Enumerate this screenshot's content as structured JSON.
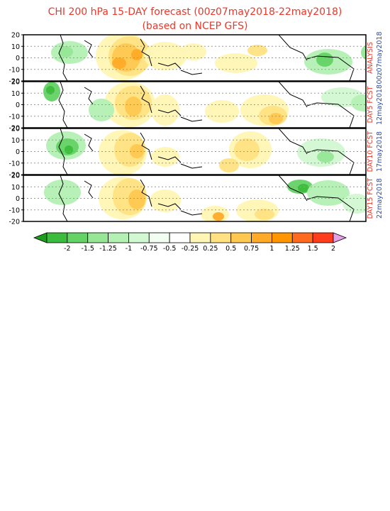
{
  "title": "CHI 200 hPa 15-DAY forecast (00z07may2018-22may2018)",
  "subtitle": "(based on NCEP GFS)",
  "lat_ticks": [
    "20",
    "10",
    "0",
    "-10",
    "-20"
  ],
  "panels": [
    {
      "label": "ANALYSIS",
      "date": "00z07may2018"
    },
    {
      "label": "DAY5 FCST",
      "date": "12may2018"
    },
    {
      "label": "DAY10 FCST",
      "date": "17may2018"
    },
    {
      "label": "DAY15 FCST",
      "date": "22may2018"
    }
  ],
  "colorbar": {
    "ticks": [
      "-2",
      "-1.5",
      "-1.25",
      "-1",
      "-0.75",
      "-0.5",
      "-0.25",
      "0.25",
      "0.5",
      "0.75",
      "1",
      "1.25",
      "1.5",
      "2"
    ],
    "colors": [
      "#1e9c1e",
      "#3cbc3c",
      "#64d264",
      "#96e696",
      "#b4f0b4",
      "#d2f8d2",
      "#f0fff0",
      "#ffffff",
      "#fff5b4",
      "#ffe182",
      "#ffc850",
      "#ffaa28",
      "#ff9600",
      "#ff6a1e",
      "#ff3c1e",
      "#e6a0e6"
    ]
  },
  "label_color": "#e8392c",
  "date_color": "#2a4fb0"
}
